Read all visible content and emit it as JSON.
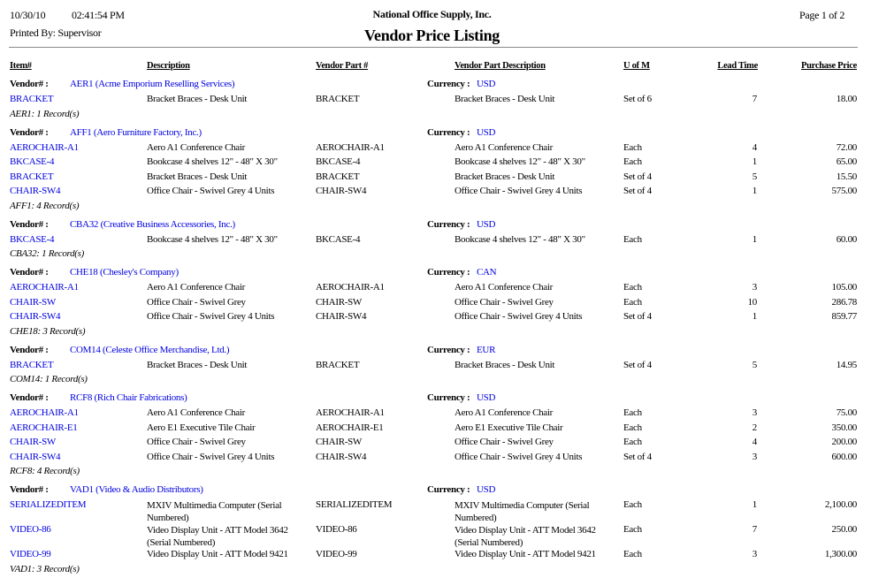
{
  "header": {
    "date": "10/30/10",
    "time": "02:41:54 PM",
    "printed_by": "Printed By: Supervisor",
    "company": "National Office Supply, Inc.",
    "title": "Vendor Price Listing",
    "page": "Page 1 of 2"
  },
  "columns": {
    "item": "Item#",
    "description": "Description",
    "vendor_part": "Vendor Part #",
    "vendor_part_desc": "Vendor Part Description",
    "uom": "U of M",
    "lead_time": "Lead Time",
    "price": "Purchase Price"
  },
  "labels": {
    "vendor": "Vendor# :",
    "currency": "Currency :"
  },
  "colors": {
    "link": "#0000e0"
  },
  "groups": [
    {
      "vendor": "AER1 (Acme Emporium Reselling Services)",
      "currency": "USD",
      "summary": "AER1: 1 Record(s)",
      "rows": [
        [
          "BRACKET",
          "Bracket Braces - Desk Unit",
          "BRACKET",
          "Bracket Braces - Desk Unit",
          "Set of 6",
          "7",
          "18.00"
        ]
      ]
    },
    {
      "vendor": "AFF1 (Aero Furniture Factory, Inc.)",
      "currency": "USD",
      "summary": "AFF1: 4 Record(s)",
      "rows": [
        [
          "AEROCHAIR-A1",
          "Aero A1 Conference Chair",
          "AEROCHAIR-A1",
          "Aero A1 Conference Chair",
          "Each",
          "4",
          "72.00"
        ],
        [
          "BKCASE-4",
          "Bookcase 4 shelves 12\" - 48\" X 30\"",
          "BKCASE-4",
          "Bookcase 4 shelves 12\" - 48\" X 30\"",
          "Each",
          "1",
          "65.00"
        ],
        [
          "BRACKET",
          "Bracket Braces - Desk Unit",
          "BRACKET",
          "Bracket Braces - Desk Unit",
          "Set of 4",
          "5",
          "15.50"
        ],
        [
          "CHAIR-SW4",
          "Office Chair - Swivel Grey 4 Units",
          "CHAIR-SW4",
          "Office Chair - Swivel Grey 4 Units",
          "Set of 4",
          "1",
          "575.00"
        ]
      ]
    },
    {
      "vendor": "CBA32 (Creative Business Accessories, Inc.)",
      "currency": "USD",
      "summary": "CBA32: 1 Record(s)",
      "rows": [
        [
          "BKCASE-4",
          "Bookcase 4 shelves 12\" - 48\" X 30\"",
          "BKCASE-4",
          "Bookcase 4 shelves 12\" - 48\" X 30\"",
          "Each",
          "1",
          "60.00"
        ]
      ]
    },
    {
      "vendor": "CHE18 (Chesley's Company)",
      "currency": "CAN",
      "summary": "CHE18: 3 Record(s)",
      "rows": [
        [
          "AEROCHAIR-A1",
          "Aero A1 Conference Chair",
          "AEROCHAIR-A1",
          "Aero A1 Conference Chair",
          "Each",
          "3",
          "105.00"
        ],
        [
          "CHAIR-SW",
          "Office Chair - Swivel Grey",
          "CHAIR-SW",
          "Office Chair - Swivel Grey",
          "Each",
          "10",
          "286.78"
        ],
        [
          "CHAIR-SW4",
          "Office Chair - Swivel Grey 4 Units",
          "CHAIR-SW4",
          "Office Chair - Swivel Grey 4 Units",
          "Set of 4",
          "1",
          "859.77"
        ]
      ]
    },
    {
      "vendor": "COM14 (Celeste Office Merchandise, Ltd.)",
      "currency": "EUR",
      "summary": "COM14: 1 Record(s)",
      "rows": [
        [
          "BRACKET",
          "Bracket Braces - Desk Unit",
          "BRACKET",
          "Bracket Braces - Desk Unit",
          "Set of 4",
          "5",
          "14.95"
        ]
      ]
    },
    {
      "vendor": "RCF8 (Rich Chair Fabrications)",
      "currency": "USD",
      "summary": "RCF8: 4 Record(s)",
      "rows": [
        [
          "AEROCHAIR-A1",
          "Aero A1 Conference Chair",
          "AEROCHAIR-A1",
          "Aero A1 Conference Chair",
          "Each",
          "3",
          "75.00"
        ],
        [
          "AEROCHAIR-E1",
          "Aero E1 Executive Tile Chair",
          "AEROCHAIR-E1",
          "Aero E1 Executive Tile Chair",
          "Each",
          "2",
          "350.00"
        ],
        [
          "CHAIR-SW",
          "Office Chair - Swivel Grey",
          "CHAIR-SW",
          "Office Chair - Swivel Grey",
          "Each",
          "4",
          "200.00"
        ],
        [
          "CHAIR-SW4",
          "Office Chair - Swivel Grey 4 Units",
          "CHAIR-SW4",
          "Office Chair - Swivel Grey 4 Units",
          "Set of 4",
          "3",
          "600.00"
        ]
      ]
    },
    {
      "vendor": "VAD1 (Video & Audio Distributors)",
      "currency": "USD",
      "summary": "VAD1: 3 Record(s)",
      "rows": [
        [
          "SERIALIZEDITEM",
          "MXIV Multimedia Computer (Serial Numbered)",
          "SERIALIZEDITEM",
          "MXIV Multimedia Computer (Serial Numbered)",
          "Each",
          "1",
          "2,100.00"
        ],
        [
          "VIDEO-86",
          "Video Display Unit - ATT Model 3642 (Serial Numbered)",
          "VIDEO-86",
          "Video Display Unit - ATT Model 3642 (Serial Numbered)",
          "Each",
          "7",
          "250.00"
        ],
        [
          "VIDEO-99",
          "Video Display Unit - ATT Model 9421",
          "VIDEO-99",
          "Video Display Unit - ATT Model 9421",
          "Each",
          "3",
          "1,300.00"
        ]
      ]
    }
  ]
}
